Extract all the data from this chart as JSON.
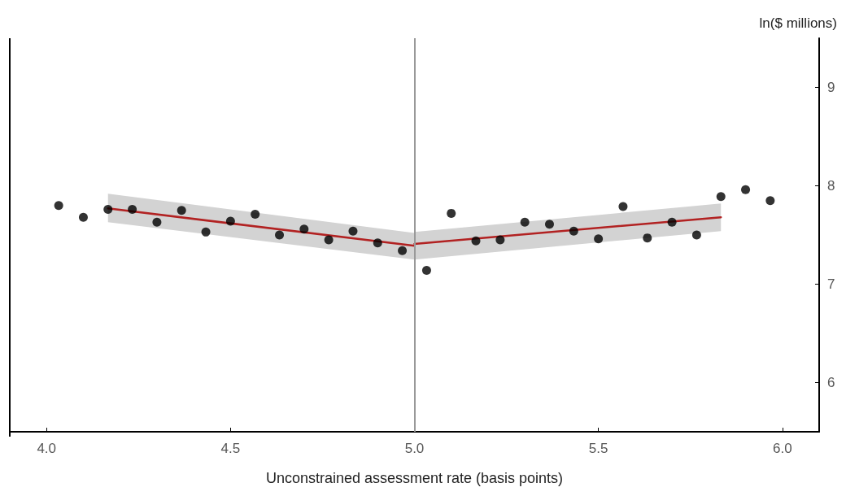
{
  "chart_data": {
    "type": "scatter",
    "xlabel": "Unconstrained assessment rate (basis points)",
    "ylabel": "ln($ millions)",
    "grid": false,
    "xlim": [
      3.9,
      6.1
    ],
    "xticks": [
      {
        "value": 4,
        "label": "4.0"
      },
      4.5,
      {
        "value": 5,
        "label": "5.0"
      },
      5.5,
      {
        "value": 6,
        "label": "6.0"
      }
    ],
    "ylim": [
      5.5,
      9.5
    ],
    "yticks": [
      6,
      7,
      8,
      9
    ],
    "series": [
      {
        "color": "#000000",
        "marker": "circle",
        "x": [
          4.033,
          4.1,
          4.167,
          4.233,
          4.3,
          4.367,
          4.433,
          4.5,
          4.567,
          4.633,
          4.7,
          4.767,
          4.833,
          4.9,
          4.967,
          5.033,
          5.1,
          5.167,
          5.233,
          5.3,
          5.367,
          5.433,
          5.5,
          5.567,
          5.633,
          5.7,
          5.767,
          5.833,
          5.9,
          5.967
        ],
        "values": [
          7.8,
          7.68,
          7.76,
          7.76,
          7.63,
          7.75,
          7.53,
          7.64,
          7.71,
          7.5,
          7.56,
          7.45,
          7.54,
          7.42,
          7.34,
          7.14,
          7.72,
          7.44,
          7.45,
          7.63,
          7.61,
          7.54,
          7.46,
          7.79,
          7.47,
          7.63,
          7.5,
          7.89,
          7.96,
          7.85
        ]
      },
      {
        "type": "line",
        "color": "#b22222",
        "line_style": "solid",
        "marker": "none",
        "x": [
          4.167,
          5.0
        ],
        "values": [
          7.77,
          7.39
        ],
        "lower": [
          7.63,
          7.25
        ],
        "upper": [
          7.92,
          7.52
        ]
      },
      {
        "type": "line",
        "color": "#b22222",
        "line_style": "solid",
        "marker": "none",
        "x": [
          5.0,
          5.833
        ],
        "values": [
          7.41,
          7.68
        ],
        "lower": [
          7.25,
          7.54
        ],
        "upper": [
          7.53,
          7.82
        ]
      }
    ],
    "ref_lines": [
      {
        "axis": "x",
        "value": 5.0,
        "color": "#999999",
        "line_style": "solid"
      }
    ]
  }
}
